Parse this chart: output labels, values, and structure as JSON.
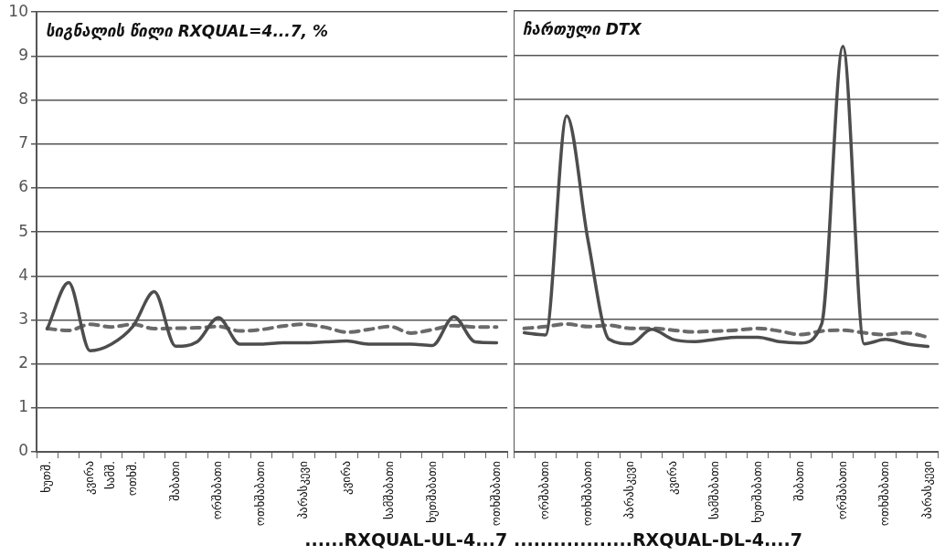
{
  "chart_data": [
    {
      "type": "line",
      "categories": [
        "ხუთშ.",
        null,
        "კვირა",
        "სამშ.",
        "ოთხშ.",
        null,
        "შაბათი",
        null,
        "ორშაბათი",
        null,
        "ოთხშაბათი",
        null,
        "პარასკევი",
        null,
        "კვირა",
        null,
        "სამშაბათი",
        null,
        "ხუთშაბათი",
        null,
        null,
        "ოთხშაბათი"
      ],
      "series": [
        {
          "color": "#4d4d4d",
          "line_style": "solid",
          "values": [
            2.8,
            3.85,
            2.3,
            2.45,
            2.85,
            3.64,
            2.4,
            2.5,
            3.05,
            2.45,
            2.45,
            2.48,
            2.48,
            2.5,
            2.52,
            2.45,
            2.45,
            2.45,
            2.42,
            3.07,
            2.5,
            2.48
          ]
        },
        {
          "color": "#6a6a6a",
          "line_style": "dashed",
          "values": [
            2.8,
            2.76,
            2.9,
            2.84,
            2.9,
            2.8,
            2.81,
            2.82,
            2.85,
            2.75,
            2.78,
            2.86,
            2.9,
            2.83,
            2.72,
            2.78,
            2.85,
            2.7,
            2.78,
            2.87,
            2.84,
            2.84
          ]
        }
      ],
      "ylim": [
        0,
        10
      ],
      "yticks": [
        0,
        1,
        2,
        3,
        4,
        5,
        6,
        7,
        8,
        9,
        10
      ],
      "grid": "y",
      "legend": false,
      "marker": "none",
      "xlabel": "......RXQUAL-UL-4...7",
      "annotations": [
        "სიგნალის წილი RXQUAL=4...7, %"
      ]
    },
    {
      "type": "line",
      "categories": [
        null,
        "ორშაბათი",
        null,
        "ოთხშაბათი",
        null,
        "პარასკევი",
        null,
        "კვირა",
        null,
        "სამშაბათი",
        null,
        "ხუთშაბათი",
        null,
        "შაბათი",
        null,
        "ორშაბათი",
        null,
        "ოთხშაბათი",
        null,
        "პარასკევი"
      ],
      "series": [
        {
          "color": "#4d4d4d",
          "line_style": "solid",
          "values": [
            2.7,
            2.65,
            7.62,
            4.8,
            2.55,
            2.45,
            2.78,
            2.55,
            2.5,
            2.55,
            2.6,
            2.6,
            2.5,
            2.47,
            2.9,
            9.2,
            2.45,
            2.55,
            2.45,
            2.39
          ]
        },
        {
          "color": "#6a6a6a",
          "line_style": "dashed",
          "values": [
            2.8,
            2.84,
            2.9,
            2.84,
            2.87,
            2.8,
            2.8,
            2.76,
            2.72,
            2.74,
            2.76,
            2.8,
            2.74,
            2.66,
            2.74,
            2.76,
            2.7,
            2.66,
            2.7,
            2.6
          ]
        }
      ],
      "ylim": [
        0,
        10
      ],
      "yticks": [
        0,
        1,
        2,
        3,
        4,
        5,
        6,
        7,
        8,
        9,
        10
      ],
      "grid": "y",
      "legend": false,
      "marker": "none",
      "tick_labels": "x",
      "xlabel": "..................RXQUAL-DL-4....7",
      "annotations": [
        "ჩართული DTX"
      ]
    }
  ]
}
